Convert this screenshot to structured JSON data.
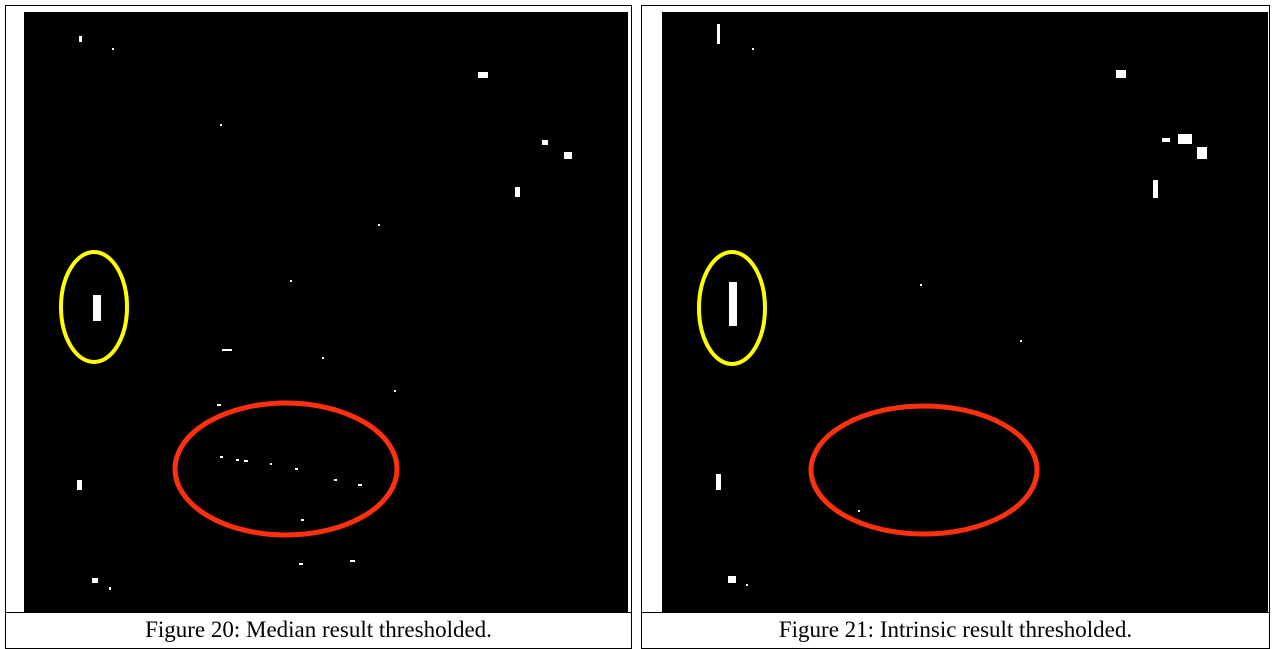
{
  "figures": [
    {
      "caption": "Figure 20: Median result thresholded."
    },
    {
      "caption": "Figure 21: Intrinsic result thresholded."
    }
  ]
}
